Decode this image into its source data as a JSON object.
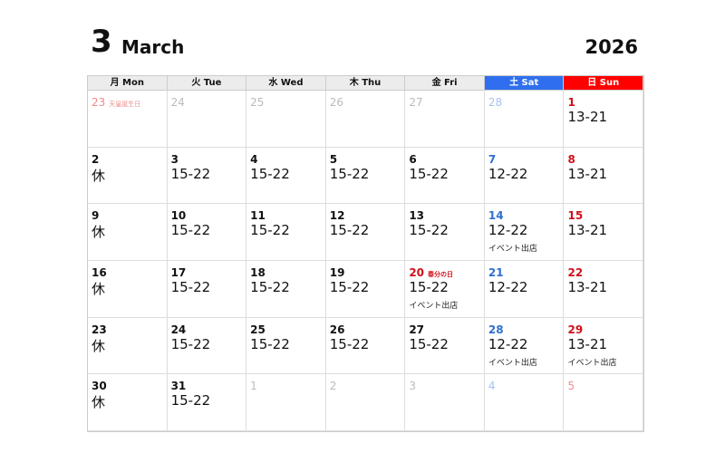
{
  "header": {
    "month_number": "3",
    "month_name": "March",
    "year": "2026"
  },
  "weekdays": [
    {
      "label": "月 Mon"
    },
    {
      "label": "火 Tue"
    },
    {
      "label": "水 Wed"
    },
    {
      "label": "木 Thu"
    },
    {
      "label": "金 Fri"
    },
    {
      "label": "土 Sat",
      "type": "sat"
    },
    {
      "label": "日 Sun",
      "type": "sun"
    }
  ],
  "colors": {
    "saturday": "#2f6fef",
    "sunday": "#ff0000",
    "holiday": "#d0101a"
  },
  "weeks": [
    [
      {
        "day": "23",
        "out": true,
        "holiday": "天皇誕生日"
      },
      {
        "day": "24",
        "out": true
      },
      {
        "day": "25",
        "out": true
      },
      {
        "day": "26",
        "out": true
      },
      {
        "day": "27",
        "out": true
      },
      {
        "day": "28",
        "out": true
      },
      {
        "day": "1",
        "hours": "13-21"
      }
    ],
    [
      {
        "day": "2",
        "hours": "休"
      },
      {
        "day": "3",
        "hours": "15-22"
      },
      {
        "day": "4",
        "hours": "15-22"
      },
      {
        "day": "5",
        "hours": "15-22"
      },
      {
        "day": "6",
        "hours": "15-22"
      },
      {
        "day": "7",
        "hours": "12-22"
      },
      {
        "day": "8",
        "hours": "13-21"
      }
    ],
    [
      {
        "day": "9",
        "hours": "休"
      },
      {
        "day": "10",
        "hours": "15-22"
      },
      {
        "day": "11",
        "hours": "15-22"
      },
      {
        "day": "12",
        "hours": "15-22"
      },
      {
        "day": "13",
        "hours": "15-22"
      },
      {
        "day": "14",
        "hours": "12-22",
        "note": "イベント出店"
      },
      {
        "day": "15",
        "hours": "13-21"
      }
    ],
    [
      {
        "day": "16",
        "hours": "休"
      },
      {
        "day": "17",
        "hours": "15-22"
      },
      {
        "day": "18",
        "hours": "15-22"
      },
      {
        "day": "19",
        "hours": "15-22"
      },
      {
        "day": "20",
        "hours": "15-22",
        "holiday": "春分の日",
        "note": "イベント出店"
      },
      {
        "day": "21",
        "hours": "12-22"
      },
      {
        "day": "22",
        "hours": "13-21"
      }
    ],
    [
      {
        "day": "23",
        "hours": "休"
      },
      {
        "day": "24",
        "hours": "15-22"
      },
      {
        "day": "25",
        "hours": "15-22"
      },
      {
        "day": "26",
        "hours": "15-22"
      },
      {
        "day": "27",
        "hours": "15-22"
      },
      {
        "day": "28",
        "hours": "12-22",
        "note": "イベント出店"
      },
      {
        "day": "29",
        "hours": "13-21",
        "note": "イベント出店"
      }
    ],
    [
      {
        "day": "30",
        "hours": "休"
      },
      {
        "day": "31",
        "hours": "15-22"
      },
      {
        "day": "1",
        "out": true
      },
      {
        "day": "2",
        "out": true
      },
      {
        "day": "3",
        "out": true
      },
      {
        "day": "4",
        "out": true
      },
      {
        "day": "5",
        "out": true
      }
    ]
  ]
}
